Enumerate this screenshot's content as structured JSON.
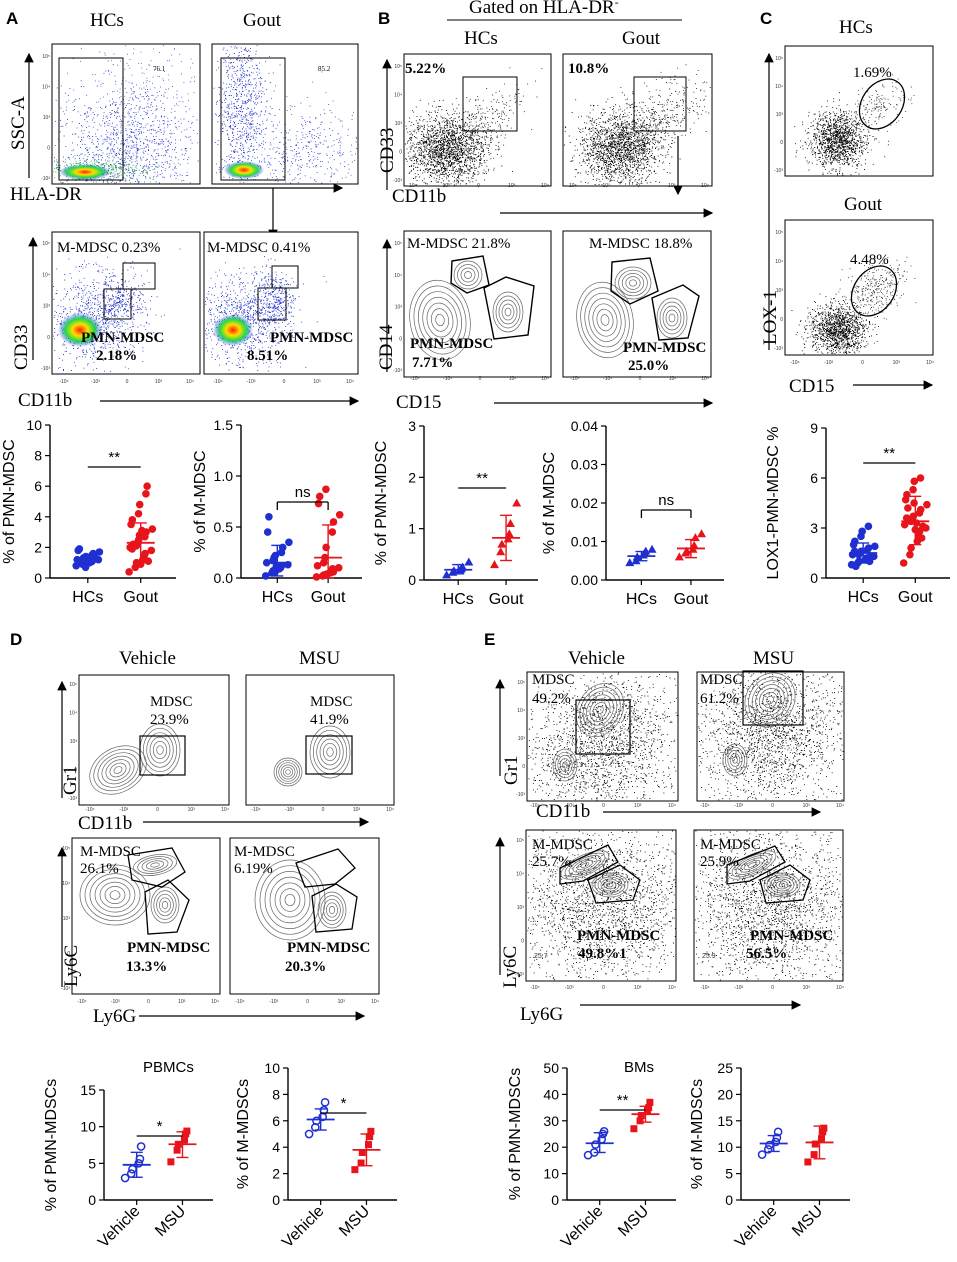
{
  "panels": {
    "A": {
      "label": "A",
      "titles": [
        "HCs",
        "Gout"
      ],
      "gate_vals": [
        "76.1",
        "85.2"
      ],
      "xlabel1": "HLA-DR",
      "ylabel1": "SSC-A",
      "xlabel2": "CD11b",
      "ylabel2": "CD33",
      "mm": [
        "M-MDSC 0.23%",
        "M-MDSC 0.41%"
      ],
      "pmn_label": "PMN-MDSC",
      "pmn": [
        "2.18%",
        "8.51%"
      ]
    },
    "B": {
      "label": "B",
      "header": "Gated on HLA-DR",
      "header_sup": "-",
      "titles": [
        "HCs",
        "Gout"
      ],
      "gate": [
        "5.22%",
        "10.8%"
      ],
      "xlabel1": "CD11b",
      "ylabel1": "CD33",
      "mm": [
        "M-MDSC 21.8%",
        "M-MDSC 18.8%"
      ],
      "pmn_label": "PMN-MDSC",
      "pmn": [
        "7.71%",
        "25.0%"
      ],
      "xlabel2": "CD15",
      "ylabel2": "CD14"
    },
    "C": {
      "label": "C",
      "titles": [
        "HCs",
        "Gout"
      ],
      "gate": [
        "1.69%",
        "4.48%"
      ],
      "xlabel": "CD15",
      "ylabel": "LOX-1"
    },
    "D": {
      "label": "D",
      "titles": [
        "Vehicle",
        "MSU"
      ],
      "mdsc_label": "MDSC",
      "mdsc": [
        "23.9%",
        "41.9%"
      ],
      "xlabel1": "CD11b",
      "ylabel1": "Gr1",
      "mm_label": "M-MDSC",
      "mm": [
        "26.1%",
        "6.19%"
      ],
      "pmn_label": "PMN-MDSC",
      "pmn": [
        "13.3%",
        "20.3%"
      ],
      "xlabel2": "Ly6G",
      "ylabel2": "Ly6C",
      "subtitle": "PBMCs"
    },
    "E": {
      "label": "E",
      "titles": [
        "Vehicle",
        "MSU"
      ],
      "mdsc_label": "MDSC",
      "mdsc": [
        "49.2%",
        "61.2%"
      ],
      "xlabel1": "CD11b",
      "ylabel1": "Gr1",
      "mm_label": "M-MDSC",
      "mm": [
        "25.7%",
        "25.9%"
      ],
      "pmn_label": "PMN-MDSC",
      "pmn": [
        "49.8%1",
        "56.5%"
      ],
      "xlabel2": "Ly6G",
      "ylabel2": "Ly6C",
      "small": [
        "25.7",
        "25.9"
      ],
      "subtitle": "BMs"
    }
  },
  "tick_labels": [
    "10⁵",
    "10⁴",
    "10³",
    "0",
    "-10³",
    "-10⁴"
  ],
  "chart_data": [
    {
      "id": "A1",
      "type": "scatter",
      "ylabel": "% of PMN-MDSC",
      "categories": [
        "HCs",
        "Gout"
      ],
      "ylim": [
        0,
        10
      ],
      "yticks": [
        "0",
        "2",
        "4",
        "6",
        "8",
        "10"
      ],
      "yticksv": [
        0,
        2,
        4,
        6,
        8,
        10
      ],
      "sig": "**",
      "colors": [
        "#1f2fd0",
        "#e8141c"
      ],
      "marker": "circle",
      "points": [
        [
          0.8,
          0.9,
          1.0,
          1.0,
          1.1,
          1.1,
          1.2,
          1.2,
          1.3,
          1.3,
          1.4,
          1.5,
          1.6,
          1.7,
          1.8,
          1.9,
          0.7,
          1.0,
          1.2,
          1.5
        ],
        [
          0.4,
          0.7,
          1.0,
          1.2,
          1.4,
          1.6,
          1.8,
          2.0,
          2.1,
          2.3,
          2.5,
          2.7,
          3.0,
          3.2,
          3.5,
          3.8,
          4.2,
          4.8,
          5.5,
          6.0,
          1.1,
          1.9,
          2.2,
          2.8,
          0.9,
          3.1
        ]
      ],
      "mean": [
        1.2,
        2.3
      ],
      "sd": [
        [
          0.9,
          1.5
        ],
        [
          1.0,
          3.6
        ]
      ]
    },
    {
      "id": "A2",
      "type": "scatter",
      "ylabel": "% of M-MDSC",
      "categories": [
        "HCs",
        "Gout"
      ],
      "ylim": [
        0,
        1.5
      ],
      "yticks": [
        "0.0",
        "0.5",
        "1.0",
        "1.5"
      ],
      "yticksv": [
        0,
        0.5,
        1.0,
        1.5
      ],
      "sig": "ns",
      "colors": [
        "#1f2fd0",
        "#e8141c"
      ],
      "marker": "circle",
      "points": [
        [
          0.02,
          0.05,
          0.07,
          0.09,
          0.1,
          0.12,
          0.13,
          0.15,
          0.17,
          0.2,
          0.22,
          0.25,
          0.3,
          0.35,
          0.45,
          0.6,
          0.06,
          0.11
        ],
        [
          0.01,
          0.02,
          0.03,
          0.05,
          0.07,
          0.09,
          0.1,
          0.12,
          0.15,
          0.2,
          0.3,
          0.45,
          0.55,
          0.62,
          0.73,
          0.8,
          0.87,
          0.04,
          0.06
        ]
      ],
      "mean": [
        0.15,
        0.2
      ],
      "sd": [
        [
          0.02,
          0.32
        ],
        [
          0.0,
          0.52
        ]
      ]
    },
    {
      "id": "B1",
      "type": "scatter",
      "ylabel": "% of PMN-MDSC",
      "categories": [
        "HCs",
        "Gout"
      ],
      "ylim": [
        0,
        3
      ],
      "yticks": [
        "0",
        "1",
        "2",
        "3"
      ],
      "yticksv": [
        0,
        1,
        2,
        3
      ],
      "sig": "**",
      "colors": [
        "#1f2fd0",
        "#e8141c"
      ],
      "marker": "triangle",
      "points": [
        [
          0.1,
          0.15,
          0.18,
          0.2,
          0.22,
          0.25,
          0.35
        ],
        [
          0.3,
          0.55,
          0.7,
          0.8,
          0.9,
          1.1,
          1.5
        ]
      ],
      "mean": [
        0.2,
        0.82
      ],
      "sd": [
        [
          0.12,
          0.3
        ],
        [
          0.38,
          1.26
        ]
      ]
    },
    {
      "id": "B2",
      "type": "scatter",
      "ylabel": "% of M-MDSC",
      "categories": [
        "HCs",
        "Gout"
      ],
      "ylim": [
        0,
        0.04
      ],
      "yticks": [
        "0.00",
        "0.01",
        "0.02",
        "0.03",
        "0.04"
      ],
      "yticksv": [
        0,
        0.01,
        0.02,
        0.03,
        0.04
      ],
      "sig": "ns",
      "colors": [
        "#1f2fd0",
        "#e8141c"
      ],
      "marker": "triangle",
      "points": [
        [
          0.0045,
          0.005,
          0.006,
          0.0065,
          0.007,
          0.0075,
          0.008
        ],
        [
          0.006,
          0.007,
          0.0075,
          0.008,
          0.009,
          0.011,
          0.012
        ]
      ],
      "mean": [
        0.0062,
        0.0082
      ],
      "sd": [
        [
          0.005,
          0.0074
        ],
        [
          0.0058,
          0.0105
        ]
      ]
    },
    {
      "id": "C1",
      "type": "scatter",
      "ylabel": "LOX1-PMN-MDSC %",
      "categories": [
        "HCs",
        "Gout"
      ],
      "ylim": [
        0,
        9
      ],
      "yticks": [
        "0",
        "3",
        "6",
        "9"
      ],
      "yticksv": [
        0,
        3,
        6,
        9
      ],
      "sig": "**",
      "colors": [
        "#1f2fd0",
        "#e8141c"
      ],
      "marker": "circle",
      "points": [
        [
          0.8,
          0.9,
          1.0,
          1.1,
          1.2,
          1.2,
          1.3,
          1.4,
          1.4,
          1.5,
          1.6,
          1.7,
          1.8,
          1.9,
          2.0,
          2.2,
          2.5,
          2.8,
          3.1,
          1.0,
          1.3,
          1.6,
          0.7
        ],
        [
          0.9,
          1.4,
          1.8,
          2.2,
          2.5,
          2.8,
          3.0,
          3.2,
          3.4,
          3.5,
          3.7,
          3.9,
          4.1,
          4.4,
          4.7,
          5.0,
          5.3,
          5.8,
          6.0,
          2.4,
          3.1,
          3.6,
          4.2,
          4.5,
          2.9,
          3.3
        ]
      ],
      "mean": [
        1.5,
        3.4
      ],
      "sd": [
        [
          0.9,
          2.1
        ],
        [
          2.0,
          4.9
        ]
      ]
    },
    {
      "id": "D1",
      "type": "scatter",
      "ylabel": "% of PMN-MDSCs",
      "categories": [
        "Vehicle",
        "MSU"
      ],
      "ylim": [
        0,
        15
      ],
      "yticks": [
        "0",
        "5",
        "10",
        "15"
      ],
      "yticksv": [
        0,
        5,
        10,
        15
      ],
      "sig": "*",
      "colors": [
        "#1f2fd0",
        "#e8141c"
      ],
      "marker": "circle-square",
      "points": [
        [
          3.0,
          3.6,
          4.2,
          5.0,
          5.6,
          7.3
        ],
        [
          5.2,
          6.8,
          7.6,
          8.2,
          9.0,
          9.4
        ]
      ],
      "mean": [
        4.8,
        7.6
      ],
      "sd": [
        [
          3.1,
          6.5
        ],
        [
          5.8,
          9.3
        ]
      ]
    },
    {
      "id": "D2",
      "type": "scatter",
      "ylabel": "% of M-MDSCs",
      "categories": [
        "Vehicle",
        "MSU"
      ],
      "ylim": [
        0,
        10
      ],
      "yticks": [
        "0",
        "2",
        "4",
        "6",
        "8",
        "10"
      ],
      "yticksv": [
        0,
        2,
        4,
        6,
        8,
        10
      ],
      "sig": "*",
      "colors": [
        "#1f2fd0",
        "#e8141c"
      ],
      "marker": "circle-square",
      "points": [
        [
          5.0,
          5.5,
          6.0,
          6.3,
          6.8,
          7.4
        ],
        [
          2.3,
          2.8,
          3.6,
          4.2,
          4.8,
          5.2
        ]
      ],
      "mean": [
        6.1,
        3.8
      ],
      "sd": [
        [
          5.3,
          6.9
        ],
        [
          2.6,
          5.0
        ]
      ]
    },
    {
      "id": "E1",
      "type": "scatter",
      "ylabel": "% of PMN-MDSCs",
      "categories": [
        "Vehicle",
        "MSU"
      ],
      "ylim": [
        0,
        50
      ],
      "yticks": [
        "0",
        "10",
        "20",
        "30",
        "40",
        "50"
      ],
      "yticksv": [
        0,
        10,
        20,
        30,
        40,
        50
      ],
      "sig": "**",
      "colors": [
        "#1f2fd0",
        "#e8141c"
      ],
      "marker": "circle-square",
      "points": [
        [
          17,
          18,
          21,
          23,
          25,
          26
        ],
        [
          27,
          30,
          32,
          34,
          35,
          37
        ]
      ],
      "mean": [
        21.5,
        32.5
      ],
      "sd": [
        [
          18,
          25.5
        ],
        [
          29.5,
          35.5
        ]
      ]
    },
    {
      "id": "E2",
      "type": "scatter",
      "ylabel": "% of M-MDSCs",
      "categories": [
        "Vehicle",
        "MSU"
      ],
      "ylim": [
        0,
        25
      ],
      "yticks": [
        "0",
        "5",
        "10",
        "15",
        "20",
        "25"
      ],
      "yticksv": [
        0,
        5,
        10,
        15,
        20,
        25
      ],
      "sig": "",
      "colors": [
        "#1f2fd0",
        "#e8141c"
      ],
      "marker": "circle-square",
      "points": [
        [
          8.6,
          9.6,
          10.4,
          11.0,
          11.8,
          12.9
        ],
        [
          7.2,
          8.6,
          10.6,
          11.6,
          12.9,
          13.6
        ]
      ],
      "mean": [
        10.7,
        10.9
      ],
      "sd": [
        [
          9.2,
          12.2
        ],
        [
          7.8,
          14.0
        ]
      ]
    }
  ]
}
